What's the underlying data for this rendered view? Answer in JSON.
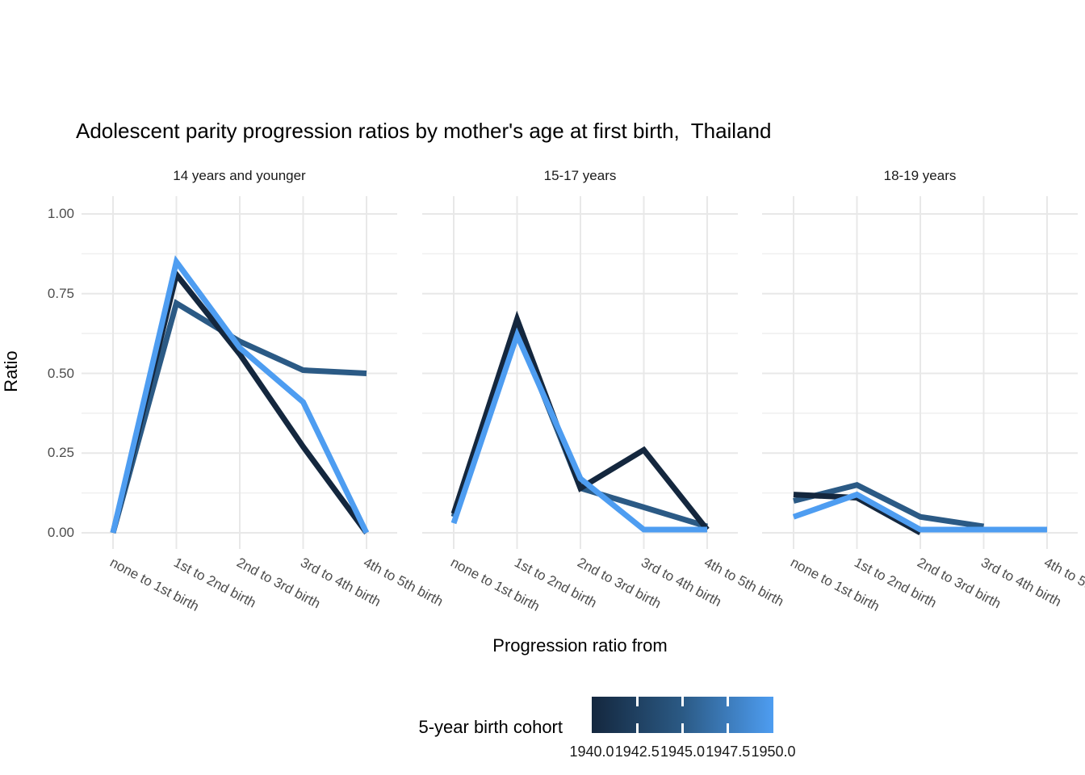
{
  "title": "Adolescent parity progression ratios by mother's age at first birth,  Thailand",
  "y_axis": {
    "label": "Ratio",
    "ticks": [
      "1.00",
      "0.75",
      "0.50",
      "0.25",
      "0.00"
    ]
  },
  "x_axis": {
    "label": "Progression ratio from",
    "categories": [
      "none to 1st birth",
      "1st to 2nd birth",
      "2nd to 3rd birth",
      "3rd to 4th birth",
      "4th to 5th birth"
    ]
  },
  "legend": {
    "title": "5-year birth cohort",
    "type": "continuous-colorbar",
    "position": "bottom",
    "tick_labels": [
      "1940.0",
      "1942.5",
      "1945.0",
      "1947.5",
      "1950.0"
    ],
    "gradient": [
      "#14273E",
      "#2B5A85",
      "#4E9DF1"
    ]
  },
  "colors": {
    "grid_major": "#E8E8E8",
    "grid_minor": "#EFEFEF",
    "tick_text": "#4D4D4D",
    "strip_text": "#1A1A1A"
  },
  "chart_data": {
    "type": "line",
    "title": "Adolescent parity progression ratios by mother's age at first birth,  Thailand",
    "xlabel": "Progression ratio from",
    "ylabel": "Ratio",
    "ylim": [
      0,
      1
    ],
    "y_major_ticks": [
      0,
      0.25,
      0.5,
      0.75,
      1.0
    ],
    "y_minor_ticks": [
      0.125,
      0.375,
      0.625,
      0.875
    ],
    "grid": true,
    "legend_position": "bottom",
    "color_scale": {
      "name": "5-year birth cohort",
      "low": 1940,
      "high": 1950
    },
    "categories": [
      "none to 1st birth",
      "1st to 2nd birth",
      "2nd to 3rd birth",
      "3rd to 4th birth",
      "4th to 5th birth"
    ],
    "facets": [
      {
        "label": "14 years and younger",
        "series": [
          {
            "name": "1940",
            "color": "#14273E",
            "values": [
              0.0,
              0.81,
              0.56,
              0.27,
              0.0
            ]
          },
          {
            "name": "1945",
            "color": "#2B5A85",
            "values": [
              0.0,
              0.72,
              0.6,
              0.51,
              0.5
            ]
          },
          {
            "name": "1950",
            "color": "#4E9DF1",
            "values": [
              0.0,
              0.85,
              0.58,
              0.41,
              0.0
            ]
          }
        ]
      },
      {
        "label": "15-17 years",
        "series": [
          {
            "name": "1940",
            "color": "#14273E",
            "values": [
              0.06,
              0.67,
              0.14,
              0.26,
              0.01
            ]
          },
          {
            "name": "1945",
            "color": "#2B5A85",
            "values": [
              0.05,
              0.64,
              0.14,
              0.08,
              0.02
            ]
          },
          {
            "name": "1950",
            "color": "#4E9DF1",
            "values": [
              0.03,
              0.62,
              0.17,
              0.01,
              0.01
            ]
          }
        ]
      },
      {
        "label": "18-19 years",
        "series": [
          {
            "name": "1940",
            "color": "#14273E",
            "values": [
              0.12,
              0.11,
              0.0,
              null,
              null
            ]
          },
          {
            "name": "1945",
            "color": "#2B5A85",
            "values": [
              0.1,
              0.15,
              0.05,
              0.02,
              null
            ]
          },
          {
            "name": "1950",
            "color": "#4E9DF1",
            "values": [
              0.05,
              0.12,
              0.01,
              0.01,
              0.01
            ]
          }
        ]
      }
    ]
  }
}
